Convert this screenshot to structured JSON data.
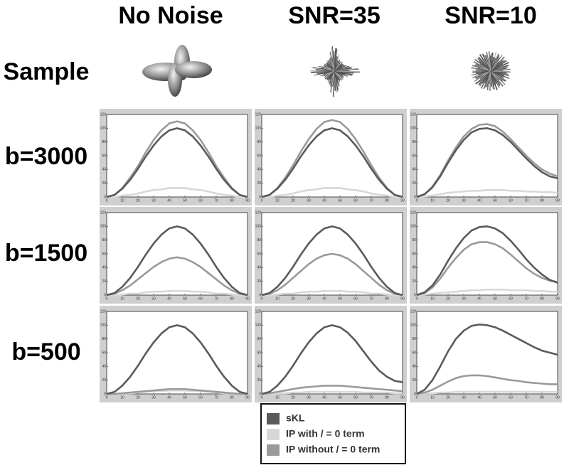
{
  "column_headers": [
    "No Noise",
    "SNR=35",
    "SNR=10"
  ],
  "row_headers": [
    "Sample",
    "b=3000",
    "b=1500",
    "b=500"
  ],
  "legend": [
    {
      "name": "sKL",
      "color": "#5a5a5a"
    },
    {
      "name": "IP with / = 0 term",
      "color": "#d8d8d8"
    },
    {
      "name": "IP without / = 0 term",
      "color": "#9a9a9a"
    }
  ],
  "chart_data": [
    {
      "type": "line",
      "x": [
        0,
        5,
        10,
        15,
        20,
        25,
        30,
        35,
        40,
        45,
        50,
        55,
        60,
        65,
        70,
        75,
        80,
        85,
        90
      ],
      "xlim": [
        0,
        90
      ],
      "xticks": [
        0,
        10,
        20,
        30,
        40,
        50,
        60,
        70,
        80,
        90
      ],
      "ylim": [
        0,
        120
      ],
      "yticks": [
        0,
        20,
        40,
        60,
        80,
        100,
        120
      ],
      "series": [
        {
          "color": "#d8d8d8",
          "values": [
            0,
            0,
            2,
            3,
            5,
            8,
            10,
            11,
            13,
            13,
            13,
            11,
            10,
            8,
            5,
            3,
            2,
            0,
            0
          ]
        },
        {
          "color": "#9a9a9a",
          "values": [
            0,
            3,
            13,
            28,
            45,
            65,
            83,
            97,
            107,
            110,
            107,
            97,
            83,
            65,
            45,
            28,
            13,
            3,
            0
          ]
        },
        {
          "color": "#5a5a5a",
          "values": [
            0,
            3,
            12,
            25,
            41,
            59,
            75,
            88,
            97,
            100,
            97,
            88,
            75,
            59,
            41,
            25,
            12,
            3,
            0
          ]
        }
      ]
    },
    {
      "type": "line",
      "x": [
        0,
        5,
        10,
        15,
        20,
        25,
        30,
        35,
        40,
        45,
        50,
        55,
        60,
        65,
        70,
        75,
        80,
        85,
        90
      ],
      "xlim": [
        0,
        90
      ],
      "xticks": [
        0,
        10,
        20,
        30,
        40,
        50,
        60,
        70,
        80,
        90
      ],
      "ylim": [
        0,
        120
      ],
      "yticks": [
        0,
        20,
        40,
        60,
        80,
        100,
        120
      ],
      "series": [
        {
          "color": "#d8d8d8",
          "values": [
            0,
            0,
            2,
            3,
            5,
            8,
            10,
            11,
            13,
            13,
            13,
            11,
            10,
            8,
            5,
            3,
            2,
            0,
            0
          ]
        },
        {
          "color": "#9a9a9a",
          "values": [
            0,
            3,
            13,
            28,
            46,
            66,
            84,
            99,
            109,
            112,
            109,
            99,
            84,
            66,
            46,
            28,
            13,
            3,
            0
          ]
        },
        {
          "color": "#5a5a5a",
          "values": [
            0,
            3,
            12,
            25,
            41,
            59,
            75,
            88,
            97,
            100,
            97,
            88,
            75,
            59,
            41,
            25,
            12,
            3,
            0
          ]
        }
      ]
    },
    {
      "type": "line",
      "x": [
        0,
        5,
        10,
        15,
        20,
        25,
        30,
        35,
        40,
        45,
        50,
        55,
        60,
        65,
        70,
        75,
        80,
        85,
        90
      ],
      "xlim": [
        0,
        90
      ],
      "xticks": [
        0,
        10,
        20,
        30,
        40,
        50,
        60,
        70,
        80,
        90
      ],
      "ylim": [
        0,
        120
      ],
      "yticks": [
        0,
        20,
        40,
        60,
        80,
        100,
        120
      ],
      "series": [
        {
          "color": "#d8d8d8",
          "values": [
            0,
            1,
            2,
            4,
            6,
            7,
            8,
            9,
            9,
            10,
            10,
            10,
            9,
            9,
            8,
            8,
            7,
            7,
            6
          ]
        },
        {
          "color": "#9a9a9a",
          "values": [
            0,
            4,
            15,
            32,
            53,
            72,
            88,
            99,
            105,
            106,
            103,
            95,
            84,
            72,
            60,
            49,
            40,
            34,
            30
          ]
        },
        {
          "color": "#5a5a5a",
          "values": [
            0,
            4,
            14,
            30,
            50,
            68,
            83,
            94,
            99,
            100,
            97,
            90,
            80,
            68,
            56,
            45,
            36,
            30,
            27
          ]
        }
      ]
    },
    {
      "type": "line",
      "x": [
        0,
        5,
        10,
        15,
        20,
        25,
        30,
        35,
        40,
        45,
        50,
        55,
        60,
        65,
        70,
        75,
        80,
        85,
        90
      ],
      "xlim": [
        0,
        90
      ],
      "xticks": [
        0,
        10,
        20,
        30,
        40,
        50,
        60,
        70,
        80,
        90
      ],
      "ylim": [
        0,
        120
      ],
      "yticks": [
        0,
        20,
        40,
        60,
        80,
        100,
        120
      ],
      "series": [
        {
          "color": "#d8d8d8",
          "values": [
            0,
            0,
            1,
            2,
            2,
            4,
            5,
            5,
            6,
            6,
            6,
            5,
            5,
            4,
            2,
            2,
            1,
            0,
            0
          ]
        },
        {
          "color": "#9a9a9a",
          "values": [
            0,
            2,
            7,
            14,
            23,
            32,
            41,
            48,
            53,
            55,
            53,
            48,
            41,
            32,
            23,
            14,
            7,
            2,
            0
          ]
        },
        {
          "color": "#5a5a5a",
          "values": [
            0,
            3,
            12,
            25,
            41,
            59,
            75,
            88,
            97,
            100,
            97,
            88,
            75,
            59,
            41,
            25,
            12,
            3,
            0
          ]
        }
      ]
    },
    {
      "type": "line",
      "x": [
        0,
        5,
        10,
        15,
        20,
        25,
        30,
        35,
        40,
        45,
        50,
        55,
        60,
        65,
        70,
        75,
        80,
        85,
        90
      ],
      "xlim": [
        0,
        90
      ],
      "xticks": [
        0,
        10,
        20,
        30,
        40,
        50,
        60,
        70,
        80,
        90
      ],
      "ylim": [
        0,
        120
      ],
      "yticks": [
        0,
        20,
        40,
        60,
        80,
        100,
        120
      ],
      "series": [
        {
          "color": "#d8d8d8",
          "values": [
            0,
            0,
            1,
            2,
            2,
            4,
            5,
            5,
            6,
            6,
            6,
            5,
            5,
            4,
            2,
            2,
            1,
            0,
            0
          ]
        },
        {
          "color": "#9a9a9a",
          "values": [
            0,
            2,
            7,
            15,
            25,
            35,
            45,
            53,
            58,
            60,
            58,
            53,
            45,
            35,
            25,
            15,
            7,
            2,
            0
          ]
        },
        {
          "color": "#5a5a5a",
          "values": [
            0,
            3,
            12,
            25,
            41,
            59,
            75,
            88,
            97,
            100,
            97,
            88,
            75,
            59,
            41,
            25,
            12,
            3,
            0
          ]
        }
      ]
    },
    {
      "type": "line",
      "x": [
        0,
        5,
        10,
        15,
        20,
        25,
        30,
        35,
        40,
        45,
        50,
        55,
        60,
        65,
        70,
        75,
        80,
        85,
        90
      ],
      "xlim": [
        0,
        90
      ],
      "xticks": [
        0,
        10,
        20,
        30,
        40,
        50,
        60,
        70,
        80,
        90
      ],
      "ylim": [
        0,
        120
      ],
      "yticks": [
        0,
        20,
        40,
        60,
        80,
        100,
        120
      ],
      "series": [
        {
          "color": "#d8d8d8",
          "values": [
            0,
            1,
            2,
            3,
            4,
            5,
            6,
            7,
            7,
            8,
            8,
            8,
            7,
            7,
            7,
            6,
            6,
            5,
            5
          ]
        },
        {
          "color": "#9a9a9a",
          "values": [
            0,
            3,
            11,
            24,
            40,
            54,
            66,
            74,
            77,
            77,
            74,
            68,
            59,
            49,
            39,
            31,
            25,
            21,
            19
          ]
        },
        {
          "color": "#5a5a5a",
          "values": [
            0,
            4,
            14,
            30,
            50,
            68,
            83,
            94,
            99,
            100,
            97,
            90,
            79,
            66,
            52,
            40,
            30,
            22,
            18
          ]
        }
      ]
    },
    {
      "type": "line",
      "x": [
        0,
        5,
        10,
        15,
        20,
        25,
        30,
        35,
        40,
        45,
        50,
        55,
        60,
        65,
        70,
        75,
        80,
        85,
        90
      ],
      "xlim": [
        0,
        90
      ],
      "xticks": [
        0,
        10,
        20,
        30,
        40,
        50,
        60,
        70,
        80,
        90
      ],
      "ylim": [
        0,
        120
      ],
      "yticks": [
        0,
        20,
        40,
        60,
        80,
        100,
        120
      ],
      "series": [
        {
          "color": "#d8d8d8",
          "values": [
            0,
            0,
            1,
            1,
            2,
            3,
            4,
            4,
            5,
            5,
            5,
            4,
            4,
            3,
            2,
            1,
            1,
            0,
            0
          ]
        },
        {
          "color": "#9a9a9a",
          "values": [
            0,
            0,
            1,
            2,
            3,
            4,
            5,
            6,
            7,
            7,
            7,
            6,
            5,
            4,
            3,
            2,
            1,
            0,
            0
          ]
        },
        {
          "color": "#5a5a5a",
          "values": [
            0,
            3,
            12,
            25,
            41,
            59,
            75,
            88,
            97,
            100,
            97,
            88,
            75,
            59,
            41,
            25,
            12,
            3,
            0
          ]
        }
      ]
    },
    {
      "type": "line",
      "x": [
        0,
        5,
        10,
        15,
        20,
        25,
        30,
        35,
        40,
        45,
        50,
        55,
        60,
        65,
        70,
        75,
        80,
        85,
        90
      ],
      "xlim": [
        0,
        90
      ],
      "xticks": [
        0,
        10,
        20,
        30,
        40,
        50,
        60,
        70,
        80,
        90
      ],
      "ylim": [
        0,
        120
      ],
      "yticks": [
        0,
        20,
        40,
        60,
        80,
        100,
        120
      ],
      "series": [
        {
          "color": "#d8d8d8",
          "values": [
            0,
            0,
            1,
            1,
            2,
            2,
            3,
            3,
            3,
            3,
            3,
            3,
            3,
            2,
            2,
            2,
            2,
            1,
            1
          ]
        },
        {
          "color": "#9a9a9a",
          "values": [
            0,
            1,
            3,
            5,
            7,
            9,
            10,
            11,
            12,
            12,
            12,
            11,
            10,
            9,
            8,
            7,
            6,
            5,
            4
          ]
        },
        {
          "color": "#5a5a5a",
          "values": [
            0,
            3,
            12,
            25,
            41,
            59,
            75,
            88,
            97,
            100,
            97,
            89,
            77,
            62,
            47,
            34,
            25,
            19,
            17
          ]
        }
      ]
    },
    {
      "type": "line",
      "x": [
        0,
        5,
        10,
        15,
        20,
        25,
        30,
        35,
        40,
        45,
        50,
        55,
        60,
        65,
        70,
        75,
        80,
        85,
        90
      ],
      "xlim": [
        0,
        90
      ],
      "xticks": [
        0,
        10,
        20,
        30,
        40,
        50,
        60,
        70,
        80,
        90
      ],
      "ylim": [
        0,
        120
      ],
      "yticks": [
        0,
        20,
        40,
        60,
        80,
        100,
        120
      ],
      "series": [
        {
          "color": "#d8d8d8",
          "values": [
            0,
            1,
            1,
            2,
            2,
            3,
            3,
            3,
            3,
            3,
            3,
            3,
            3,
            3,
            3,
            3,
            3,
            3,
            3
          ]
        },
        {
          "color": "#9a9a9a",
          "values": [
            0,
            2,
            6,
            12,
            18,
            23,
            26,
            27,
            27,
            26,
            24,
            22,
            20,
            19,
            17,
            16,
            15,
            14,
            14
          ]
        },
        {
          "color": "#5a5a5a",
          "values": [
            0,
            6,
            20,
            40,
            62,
            80,
            92,
            99,
            101,
            100,
            97,
            92,
            86,
            80,
            74,
            68,
            63,
            60,
            57
          ]
        }
      ]
    }
  ]
}
